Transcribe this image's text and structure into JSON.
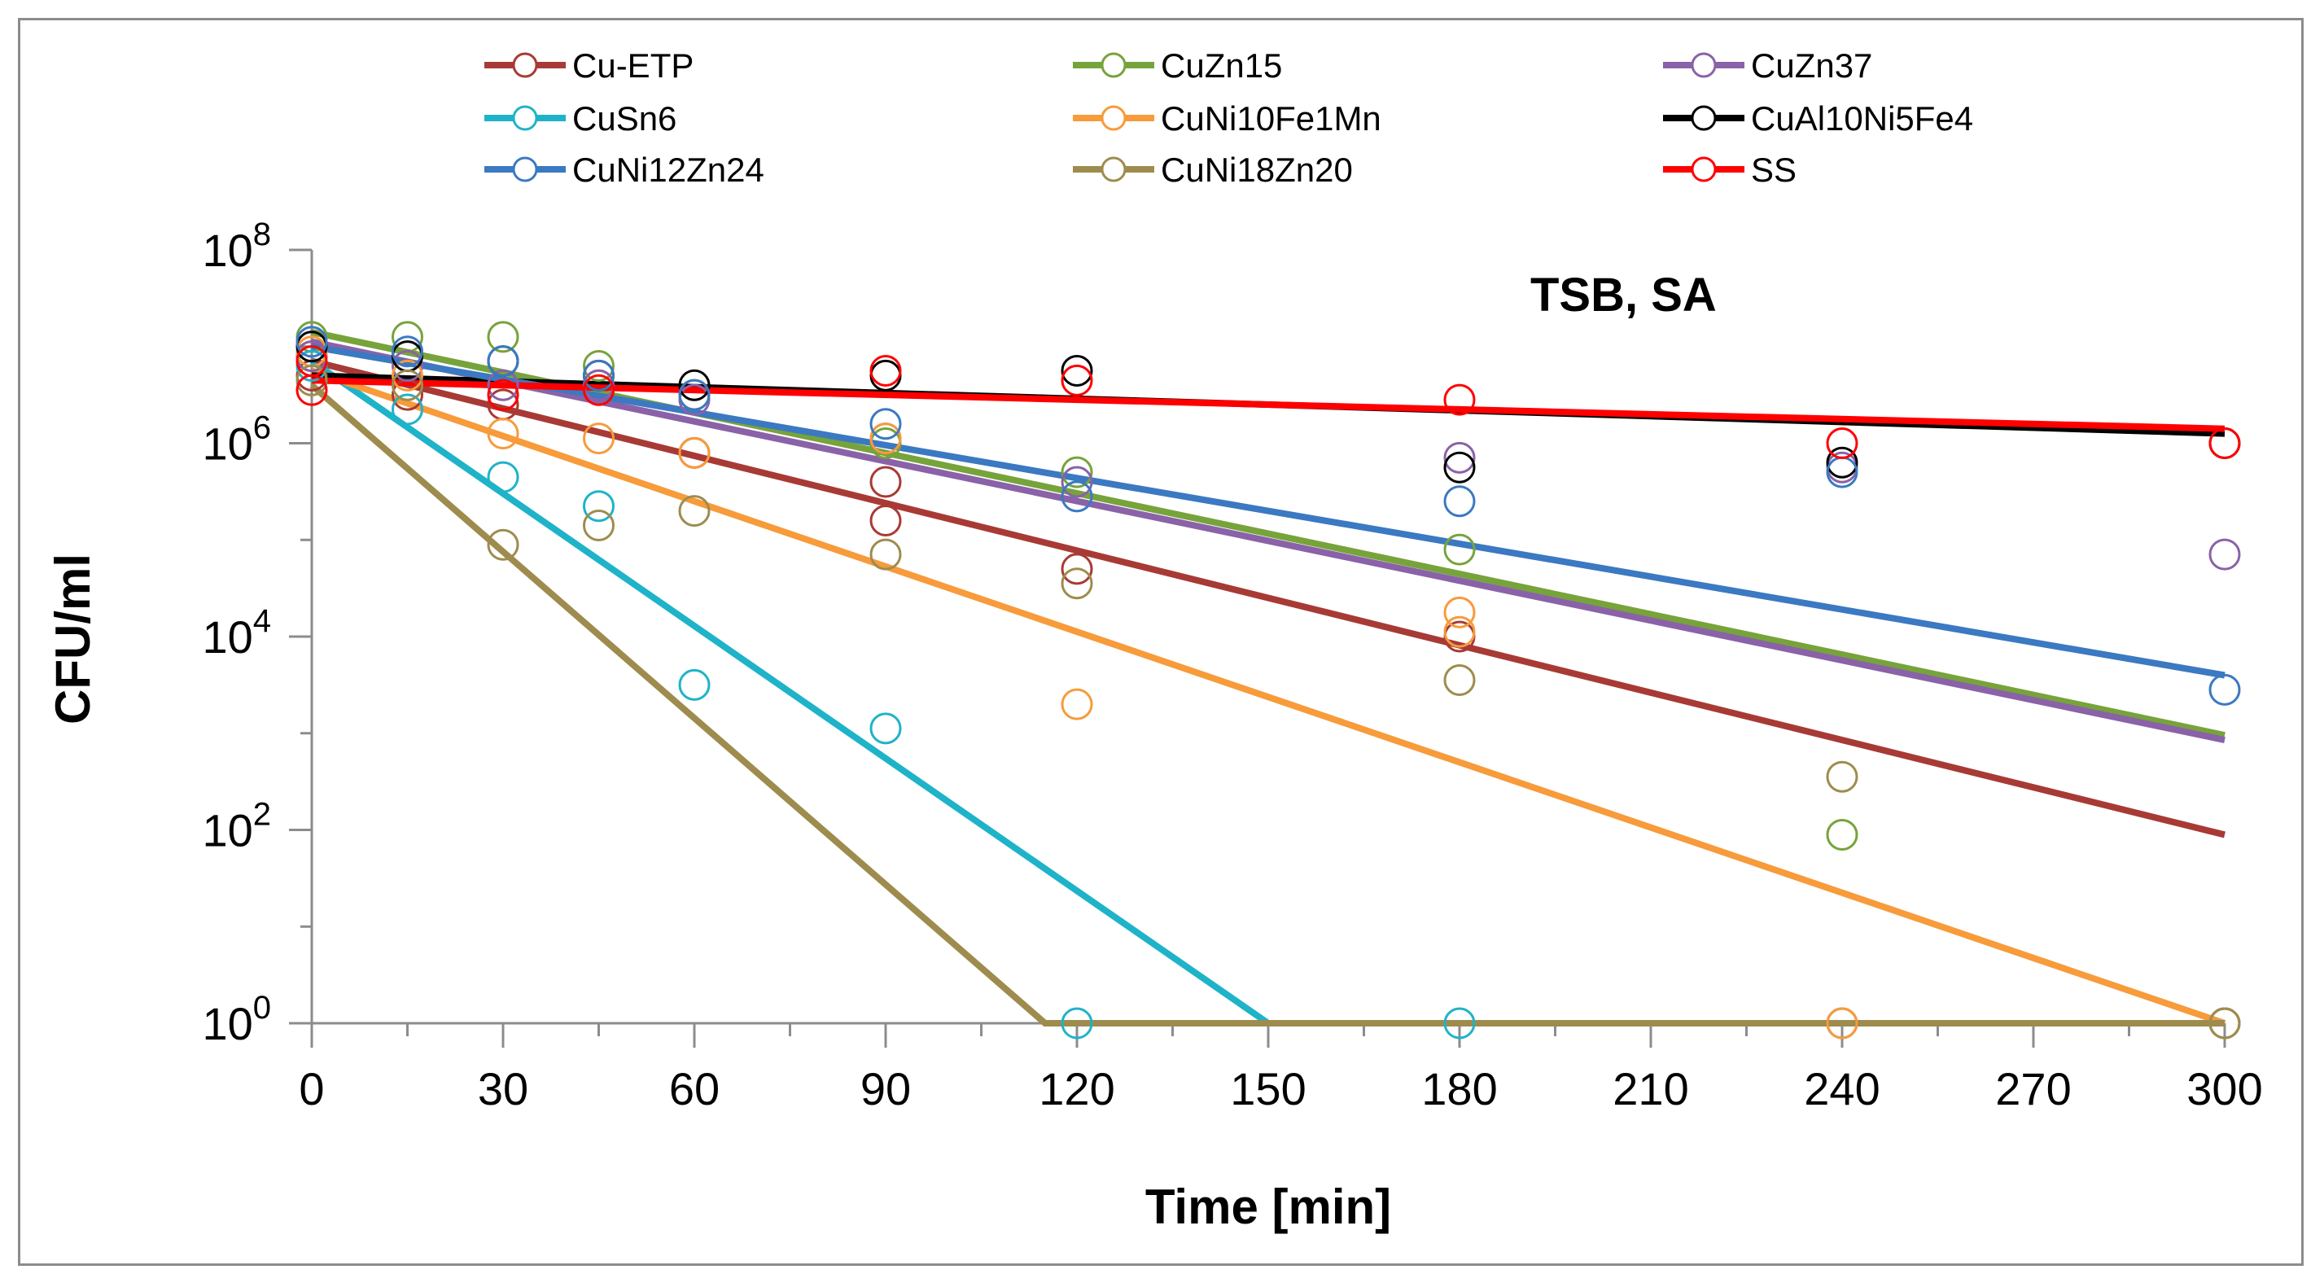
{
  "chart_data": {
    "type": "scatter",
    "title": "",
    "annotation": "TSB, SA",
    "xlabel": "Time [min]",
    "ylabel": "CFU/ml",
    "y_scale": "log",
    "xlim": [
      0,
      300
    ],
    "ylim_exponent": [
      0,
      8
    ],
    "x_ticks": [
      "0",
      "30",
      "60",
      "90",
      "120",
      "150",
      "180",
      "210",
      "240",
      "270",
      "300"
    ],
    "y_tick_base": "10",
    "y_tick_exponents": [
      "0",
      "2",
      "4",
      "6",
      "8"
    ],
    "legend_position": "top",
    "series": [
      {
        "name": "Cu-ETP",
        "color": "#a83a36",
        "fit_log10": [
          [
            0,
            6.85
          ],
          [
            300,
            1.95
          ]
        ],
        "points": [
          [
            0,
            6.9
          ],
          [
            0,
            6.7
          ],
          [
            15,
            6.5
          ],
          [
            30,
            6.4
          ],
          [
            45,
            6.6
          ],
          [
            60,
            5.9
          ],
          [
            90,
            5.6
          ],
          [
            90,
            5.2
          ],
          [
            120,
            4.7
          ],
          [
            180,
            4.0
          ],
          [
            240,
            0
          ],
          [
            300,
            0
          ]
        ]
      },
      {
        "name": "CuZn15",
        "color": "#77a33b",
        "fit_log10": [
          [
            0,
            7.15
          ],
          [
            300,
            2.98
          ]
        ],
        "points": [
          [
            0,
            7.1
          ],
          [
            15,
            7.1
          ],
          [
            30,
            7.1
          ],
          [
            45,
            6.8
          ],
          [
            60,
            6.5
          ],
          [
            90,
            6.0
          ],
          [
            120,
            5.7
          ],
          [
            180,
            4.9
          ],
          [
            240,
            1.95
          ],
          [
            300,
            0
          ]
        ]
      },
      {
        "name": "CuZn37",
        "color": "#8a62a8",
        "fit_log10": [
          [
            0,
            7.05
          ],
          [
            300,
            2.93
          ]
        ],
        "points": [
          [
            0,
            6.9
          ],
          [
            15,
            6.8
          ],
          [
            30,
            6.6
          ],
          [
            45,
            6.6
          ],
          [
            60,
            6.45
          ],
          [
            90,
            6.05
          ],
          [
            120,
            5.6
          ],
          [
            180,
            5.85
          ],
          [
            240,
            5.75
          ],
          [
            300,
            4.85
          ]
        ]
      },
      {
        "name": "CuSn6",
        "color": "#1fb3c9",
        "fit_log10": [
          [
            0,
            6.85
          ],
          [
            150,
            0
          ]
        ],
        "points": [
          [
            0,
            6.8
          ],
          [
            15,
            6.35
          ],
          [
            30,
            5.65
          ],
          [
            45,
            5.35
          ],
          [
            60,
            3.5
          ],
          [
            90,
            3.05
          ],
          [
            120,
            0
          ],
          [
            180,
            0
          ],
          [
            300,
            0
          ]
        ]
      },
      {
        "name": "CuNi10Fe1Mn",
        "color": "#f79b3b",
        "fit_log10": [
          [
            0,
            6.75
          ],
          [
            300,
            0
          ]
        ],
        "points": [
          [
            0,
            6.95
          ],
          [
            15,
            6.7
          ],
          [
            30,
            6.1
          ],
          [
            45,
            6.05
          ],
          [
            60,
            5.9
          ],
          [
            90,
            6.05
          ],
          [
            120,
            3.3
          ],
          [
            180,
            4.05
          ],
          [
            180,
            4.25
          ],
          [
            240,
            0
          ],
          [
            300,
            0
          ]
        ]
      },
      {
        "name": "CuAl10Ni5Fe4",
        "color": "#000000",
        "fit_log10": [
          [
            0,
            6.7
          ],
          [
            300,
            6.1
          ]
        ],
        "points": [
          [
            0,
            7.0
          ],
          [
            15,
            6.9
          ],
          [
            30,
            6.85
          ],
          [
            45,
            6.7
          ],
          [
            60,
            6.6
          ],
          [
            90,
            6.7
          ],
          [
            120,
            6.75
          ],
          [
            180,
            5.75
          ],
          [
            240,
            5.8
          ],
          [
            300,
            6.0
          ]
        ]
      },
      {
        "name": "CuNi12Zn24",
        "color": "#3b79c2",
        "fit_log10": [
          [
            0,
            7.0
          ],
          [
            300,
            3.6
          ]
        ],
        "points": [
          [
            0,
            7.05
          ],
          [
            15,
            6.95
          ],
          [
            30,
            6.85
          ],
          [
            45,
            6.7
          ],
          [
            60,
            6.5
          ],
          [
            90,
            6.2
          ],
          [
            120,
            5.45
          ],
          [
            180,
            5.4
          ],
          [
            240,
            5.7
          ],
          [
            300,
            3.45
          ]
        ]
      },
      {
        "name": "CuNi18Zn20",
        "color": "#9e8c4e",
        "fit_log10": [
          [
            0,
            6.6
          ],
          [
            115,
            0
          ],
          [
            300,
            0
          ]
        ],
        "points": [
          [
            0,
            6.65
          ],
          [
            15,
            6.6
          ],
          [
            30,
            4.95
          ],
          [
            45,
            5.15
          ],
          [
            60,
            5.3
          ],
          [
            90,
            4.85
          ],
          [
            120,
            4.55
          ],
          [
            180,
            3.55
          ],
          [
            240,
            2.55
          ],
          [
            300,
            0
          ]
        ]
      },
      {
        "name": "SS",
        "color": "#ff0000",
        "fit_log10": [
          [
            0,
            6.65
          ],
          [
            300,
            6.15
          ]
        ],
        "points": [
          [
            0,
            6.55
          ],
          [
            0,
            6.85
          ],
          [
            30,
            6.5
          ],
          [
            45,
            6.55
          ],
          [
            90,
            6.75
          ],
          [
            120,
            6.65
          ],
          [
            180,
            6.45
          ],
          [
            240,
            6.0
          ],
          [
            300,
            6.0
          ]
        ]
      }
    ]
  }
}
